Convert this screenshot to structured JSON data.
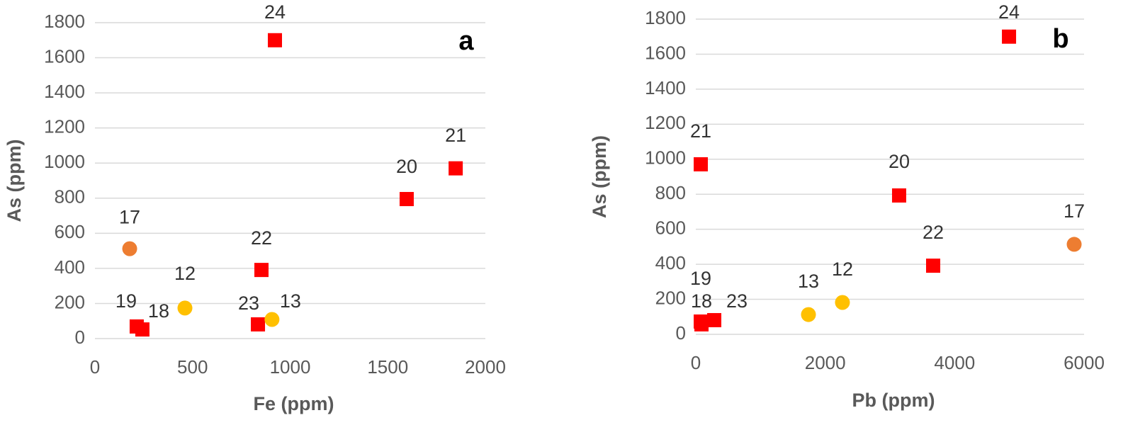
{
  "chart_data": [
    {
      "type": "scatter",
      "panel_label": "a",
      "xlabel": "Fe (ppm)",
      "ylabel": "As (ppm)",
      "xlim": [
        0,
        2000
      ],
      "xticks": [
        0,
        500,
        1000,
        1500,
        2000
      ],
      "ylim": [
        0,
        1800
      ],
      "yticks": [
        0,
        200,
        400,
        600,
        800,
        1000,
        1200,
        1400,
        1600,
        1800
      ],
      "grid": true,
      "series": [
        {
          "color": "#ff0000",
          "marker": "square",
          "x": [
            922,
            1848,
            1597,
            853,
            835,
            214,
            243
          ],
          "values": [
            1700,
            970,
            795,
            391,
            81,
            69,
            52
          ],
          "point_labels": [
            "24",
            "21",
            "20",
            "22",
            "23",
            "19",
            "18"
          ]
        },
        {
          "color": "#ed7d31",
          "marker": "circle",
          "x": [
            178
          ],
          "values": [
            512
          ],
          "point_labels": [
            "17"
          ]
        },
        {
          "color": "#ffc000",
          "marker": "circle",
          "x": [
            461,
            907
          ],
          "values": [
            174,
            109
          ],
          "point_labels": [
            "12",
            "13"
          ]
        }
      ]
    },
    {
      "type": "scatter",
      "panel_label": "b",
      "xlabel": "Pb (ppm)",
      "ylabel": "As (ppm)",
      "xlim": [
        0,
        6000
      ],
      "xticks": [
        0,
        2000,
        4000,
        6000
      ],
      "ylim": [
        0,
        1800
      ],
      "yticks": [
        0,
        200,
        400,
        600,
        800,
        1000,
        1200,
        1400,
        1600,
        1800
      ],
      "grid": true,
      "series": [
        {
          "color": "#ff0000",
          "marker": "square",
          "x": [
            4840,
            77,
            3142,
            3668,
            285,
            77,
            88
          ],
          "values": [
            1700,
            971,
            793,
            392,
            81,
            73,
            57
          ],
          "point_labels": [
            "24",
            "21",
            "20",
            "22",
            "23",
            "19",
            "18"
          ]
        },
        {
          "color": "#ed7d31",
          "marker": "circle",
          "x": [
            5847
          ],
          "values": [
            514
          ],
          "point_labels": [
            "17"
          ]
        },
        {
          "color": "#ffc000",
          "marker": "circle",
          "x": [
            1741,
            2266
          ],
          "values": [
            113,
            182
          ],
          "point_labels": [
            "13",
            "12"
          ]
        }
      ]
    }
  ]
}
